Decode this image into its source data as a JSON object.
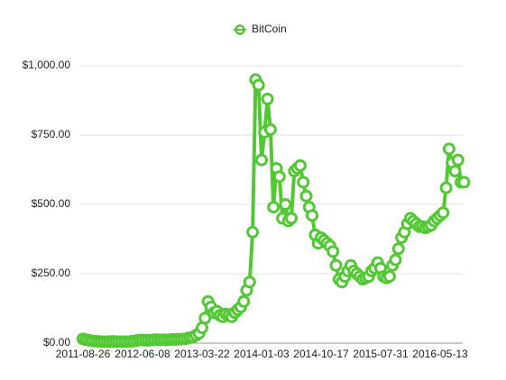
{
  "chart_data": {
    "type": "line",
    "legend": "top",
    "grid": true,
    "categories": [
      "2011-08-26",
      null,
      null,
      null,
      null,
      null,
      null,
      null,
      null,
      null,
      null,
      null,
      null,
      null,
      null,
      null,
      null,
      null,
      null,
      null,
      "2012-06-08",
      null,
      null,
      null,
      null,
      null,
      null,
      null,
      null,
      null,
      null,
      null,
      null,
      null,
      null,
      null,
      null,
      null,
      null,
      null,
      "2013-03-22",
      null,
      null,
      null,
      null,
      null,
      null,
      null,
      null,
      null,
      null,
      null,
      null,
      null,
      null,
      null,
      null,
      null,
      null,
      null,
      "2014-01-03",
      null,
      null,
      null,
      null,
      null,
      null,
      null,
      null,
      null,
      null,
      null,
      null,
      null,
      null,
      null,
      null,
      null,
      null,
      null,
      "2014-10-17",
      null,
      null,
      null,
      null,
      null,
      null,
      null,
      null,
      null,
      null,
      null,
      null,
      null,
      null,
      null,
      null,
      null,
      null,
      null,
      "2015-07-31",
      null,
      null,
      null,
      null,
      null,
      null,
      null,
      null,
      null,
      null,
      null,
      null,
      null,
      null,
      null,
      null,
      null,
      null,
      null,
      "2016-05-13",
      null,
      null,
      null,
      null,
      null,
      null,
      null,
      null
    ],
    "series": [
      {
        "name": "BitCoin",
        "color": "#52c934",
        "values": [
          15,
          12,
          10,
          8,
          7,
          6,
          5,
          5,
          5,
          5,
          6,
          5,
          5,
          5,
          5,
          5,
          6,
          7,
          9,
          11,
          11,
          10,
          10,
          11,
          12,
          12,
          11,
          12,
          11,
          12,
          13,
          13,
          14,
          14,
          15,
          17,
          20,
          22,
          28,
          35,
          55,
          90,
          150,
          130,
          110,
          115,
          100,
          95,
          105,
          100,
          95,
          110,
          120,
          130,
          150,
          190,
          220,
          400,
          950,
          930,
          660,
          760,
          880,
          770,
          490,
          630,
          600,
          450,
          500,
          440,
          450,
          620,
          630,
          640,
          580,
          530,
          490,
          460,
          390,
          360,
          380,
          370,
          360,
          350,
          330,
          280,
          230,
          220,
          240,
          260,
          280,
          260,
          250,
          240,
          230,
          235,
          240,
          260,
          270,
          290,
          270,
          240,
          235,
          240,
          280,
          300,
          340,
          380,
          400,
          430,
          450,
          440,
          430,
          420,
          420,
          415,
          420,
          425,
          440,
          450,
          460,
          470,
          560,
          700,
          650,
          620,
          660,
          580,
          580
        ]
      }
    ],
    "ylim": [
      0,
      1000
    ],
    "yticks": [
      {
        "value": 0,
        "label": "$0.00"
      },
      {
        "value": 250,
        "label": "$250.00"
      },
      {
        "value": 500,
        "label": "$500.00"
      },
      {
        "value": 750,
        "label": "$750.00"
      },
      {
        "value": 1000,
        "label": "$1,000.00"
      }
    ]
  }
}
